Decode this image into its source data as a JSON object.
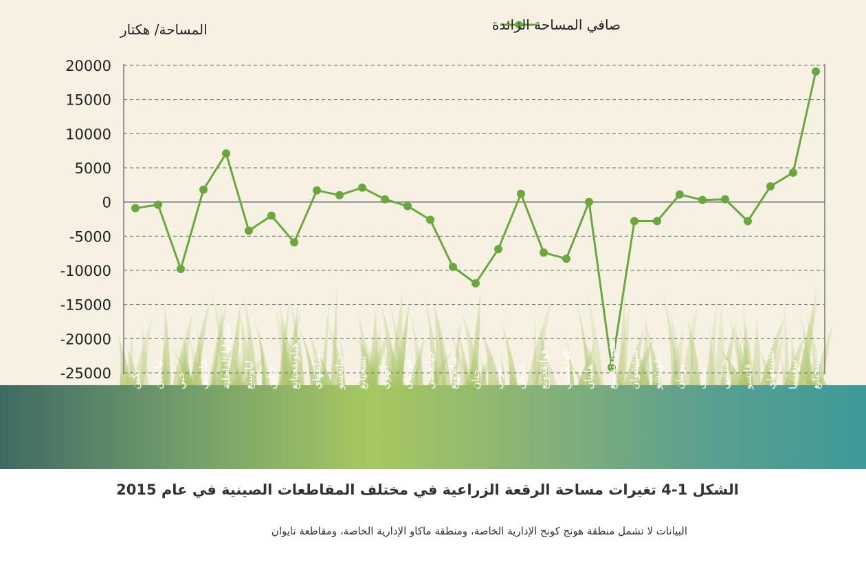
{
  "caption": "الشكل 1-4 تغيرات مساحة الرقعة الزراعية في مختلف المقاطعات الصينية في عام 2015",
  "note": "البيانات لا تشمل منطقة هونج كونج الإدارية الخاصة، ومنطقة ماكاو الإدارية الخاصة، ومقاطعة تايوان",
  "chart_data": {
    "type": "line",
    "ylabel": "المساحة/ هكتار",
    "ylim": [
      -25000,
      20000
    ],
    "yticks": [
      "20000",
      "15000",
      "10000",
      "5000",
      "0",
      "-5000",
      "-10000",
      "-15000",
      "-20000",
      "-25000"
    ],
    "grid": true,
    "legend": "top-center",
    "series": [
      {
        "name": "صافي المساحة الزائدة",
        "color": "#6aa83f",
        "values": [
          -900,
          -400,
          -9800,
          1800,
          7100,
          -4200,
          -2000,
          -5900,
          1700,
          1000,
          2100,
          400,
          -600,
          -2600,
          -9500,
          -11900,
          -6900,
          1200,
          -7400,
          -8300,
          0,
          -24200,
          -2800,
          -2800,
          1100,
          300,
          400,
          -2800,
          2300,
          4300,
          19100
        ]
      }
    ],
    "categories": [
      "بكين",
      "تيانجين",
      "خبي",
      "شانشي",
      "منغوليا الداخلية",
      "لياونينغ",
      "جيلين",
      "هيلونغجيانغ",
      "شانغهاي",
      "جيانغسو",
      "تشجيانغ",
      "آنهوي",
      "فوجيان",
      "جيانغشي",
      "شاندونغ",
      "خنان",
      "هوبي",
      "هونان",
      "قوانغدونغ",
      "قوانغشي",
      "هاينان",
      "تشونغتشينغ",
      "سيتشوان",
      "قويتشو",
      "يونتان",
      "التبت",
      "شنشي",
      "قانسو",
      "تشينغهاي",
      "نينغشيا",
      "شينجيانغ"
    ]
  }
}
